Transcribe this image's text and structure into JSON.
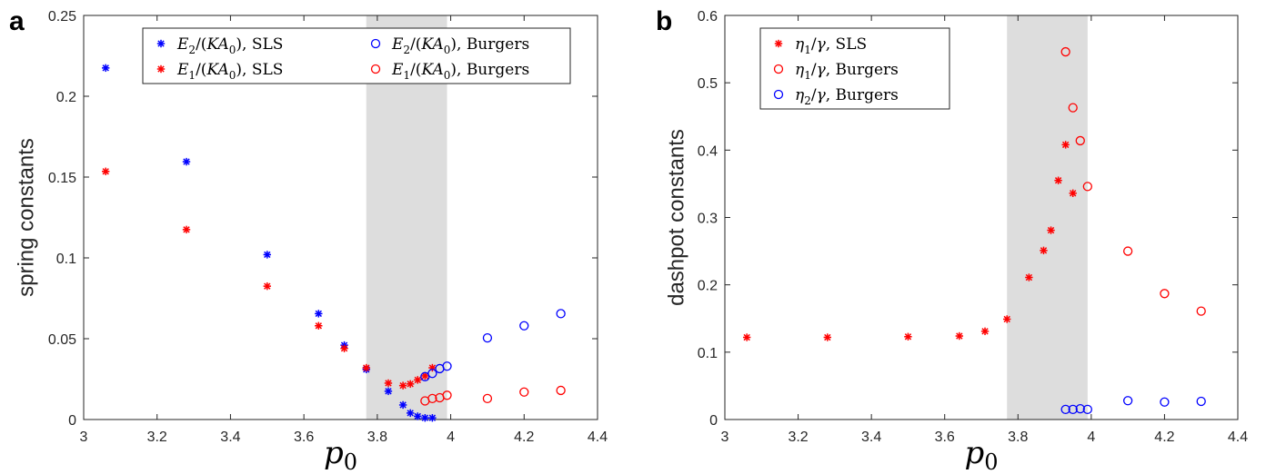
{
  "chart_data": [
    {
      "type": "scatter",
      "panel_label": "a",
      "xlabel": "p0",
      "ylabel": "spring constants",
      "xlim": [
        3,
        4.4
      ],
      "ylim": [
        0,
        0.25
      ],
      "xticks": [
        "3",
        "3.2",
        "3.4",
        "3.6",
        "3.8",
        "4",
        "4.2",
        "4.4"
      ],
      "yticks": [
        "0",
        "0.05",
        "0.1",
        "0.15",
        "0.2",
        "0.25"
      ],
      "shaded_x_range": [
        3.77,
        3.99
      ],
      "grid": false,
      "legend_placement": "top-right",
      "series": [
        {
          "name": "E2/(KA0), SLS",
          "marker": "asterisk",
          "color": "#0000ff",
          "x": [
            3.06,
            3.28,
            3.5,
            3.64,
            3.71,
            3.77,
            3.83,
            3.87,
            3.89,
            3.91,
            3.93,
            3.95
          ],
          "y": [
            0.2175,
            0.1595,
            0.102,
            0.0655,
            0.046,
            0.031,
            0.0175,
            0.009,
            0.004,
            0.002,
            0.001,
            0.001
          ]
        },
        {
          "name": "E1/(KA0), SLS",
          "marker": "asterisk",
          "color": "#ff0000",
          "x": [
            3.06,
            3.28,
            3.5,
            3.64,
            3.71,
            3.77,
            3.83,
            3.87,
            3.89,
            3.91,
            3.93,
            3.95
          ],
          "y": [
            0.1535,
            0.1175,
            0.0825,
            0.058,
            0.044,
            0.032,
            0.0225,
            0.021,
            0.022,
            0.0245,
            0.027,
            0.032
          ]
        },
        {
          "name": "E2/(KA0), Burgers",
          "marker": "circle",
          "color": "#0000ff",
          "x": [
            3.93,
            3.95,
            3.97,
            3.99,
            4.1,
            4.2,
            4.3
          ],
          "y": [
            0.0265,
            0.0285,
            0.0315,
            0.033,
            0.0505,
            0.058,
            0.0655
          ]
        },
        {
          "name": "E1/(KA0), Burgers",
          "marker": "circle",
          "color": "#ff0000",
          "x": [
            3.93,
            3.95,
            3.97,
            3.99,
            4.1,
            4.2,
            4.3
          ],
          "y": [
            0.0115,
            0.013,
            0.0135,
            0.015,
            0.013,
            0.017,
            0.018
          ]
        }
      ],
      "legend": [
        {
          "marker": "asterisk",
          "color": "#0000ff",
          "base": "E",
          "sub": "2",
          "rest": "/(KA",
          "sub2": "0",
          "tail": "), SLS"
        },
        {
          "marker": "circle",
          "color": "#0000ff",
          "base": "E",
          "sub": "2",
          "rest": "/(KA",
          "sub2": "0",
          "tail": "), Burgers"
        },
        {
          "marker": "asterisk",
          "color": "#ff0000",
          "base": "E",
          "sub": "1",
          "rest": "/(KA",
          "sub2": "0",
          "tail": "), SLS"
        },
        {
          "marker": "circle",
          "color": "#ff0000",
          "base": "E",
          "sub": "1",
          "rest": "/(KA",
          "sub2": "0",
          "tail": "), Burgers"
        }
      ]
    },
    {
      "type": "scatter",
      "panel_label": "b",
      "xlabel": "p0",
      "ylabel": "dashpot constants",
      "xlim": [
        3,
        4.4
      ],
      "ylim": [
        0,
        0.6
      ],
      "xticks": [
        "3",
        "3.2",
        "3.4",
        "3.6",
        "3.8",
        "4",
        "4.2",
        "4.4"
      ],
      "yticks": [
        "0",
        "0.1",
        "0.2",
        "0.3",
        "0.4",
        "0.5",
        "0.6"
      ],
      "shaded_x_range": [
        3.77,
        3.99
      ],
      "grid": false,
      "legend_placement": "top-left",
      "series": [
        {
          "name": "η1/γ, SLS",
          "marker": "asterisk",
          "color": "#ff0000",
          "x": [
            3.06,
            3.28,
            3.5,
            3.64,
            3.71,
            3.77,
            3.83,
            3.87,
            3.89,
            3.91,
            3.93,
            3.95
          ],
          "y": [
            0.122,
            0.122,
            0.123,
            0.124,
            0.131,
            0.149,
            0.211,
            0.251,
            0.281,
            0.355,
            0.408,
            0.336
          ]
        },
        {
          "name": "η1/γ, Burgers",
          "marker": "circle",
          "color": "#ff0000",
          "x": [
            3.93,
            3.95,
            3.97,
            3.99,
            4.1,
            4.2,
            4.3
          ],
          "y": [
            0.546,
            0.463,
            0.414,
            0.346,
            0.25,
            0.187,
            0.161
          ]
        },
        {
          "name": "η2/γ, Burgers",
          "marker": "circle",
          "color": "#0000ff",
          "x": [
            3.93,
            3.95,
            3.97,
            3.99,
            4.1,
            4.2,
            4.3
          ],
          "y": [
            0.015,
            0.015,
            0.016,
            0.015,
            0.028,
            0.026,
            0.027
          ]
        }
      ],
      "legend": [
        {
          "marker": "asterisk",
          "color": "#ff0000",
          "base": "η",
          "sub": "1",
          "rest": "/γ, SLS"
        },
        {
          "marker": "circle",
          "color": "#ff0000",
          "base": "η",
          "sub": "1",
          "rest": "/γ, Burgers"
        },
        {
          "marker": "circle",
          "color": "#0000ff",
          "base": "η",
          "sub": "2",
          "rest": "/γ, Burgers"
        }
      ]
    }
  ]
}
